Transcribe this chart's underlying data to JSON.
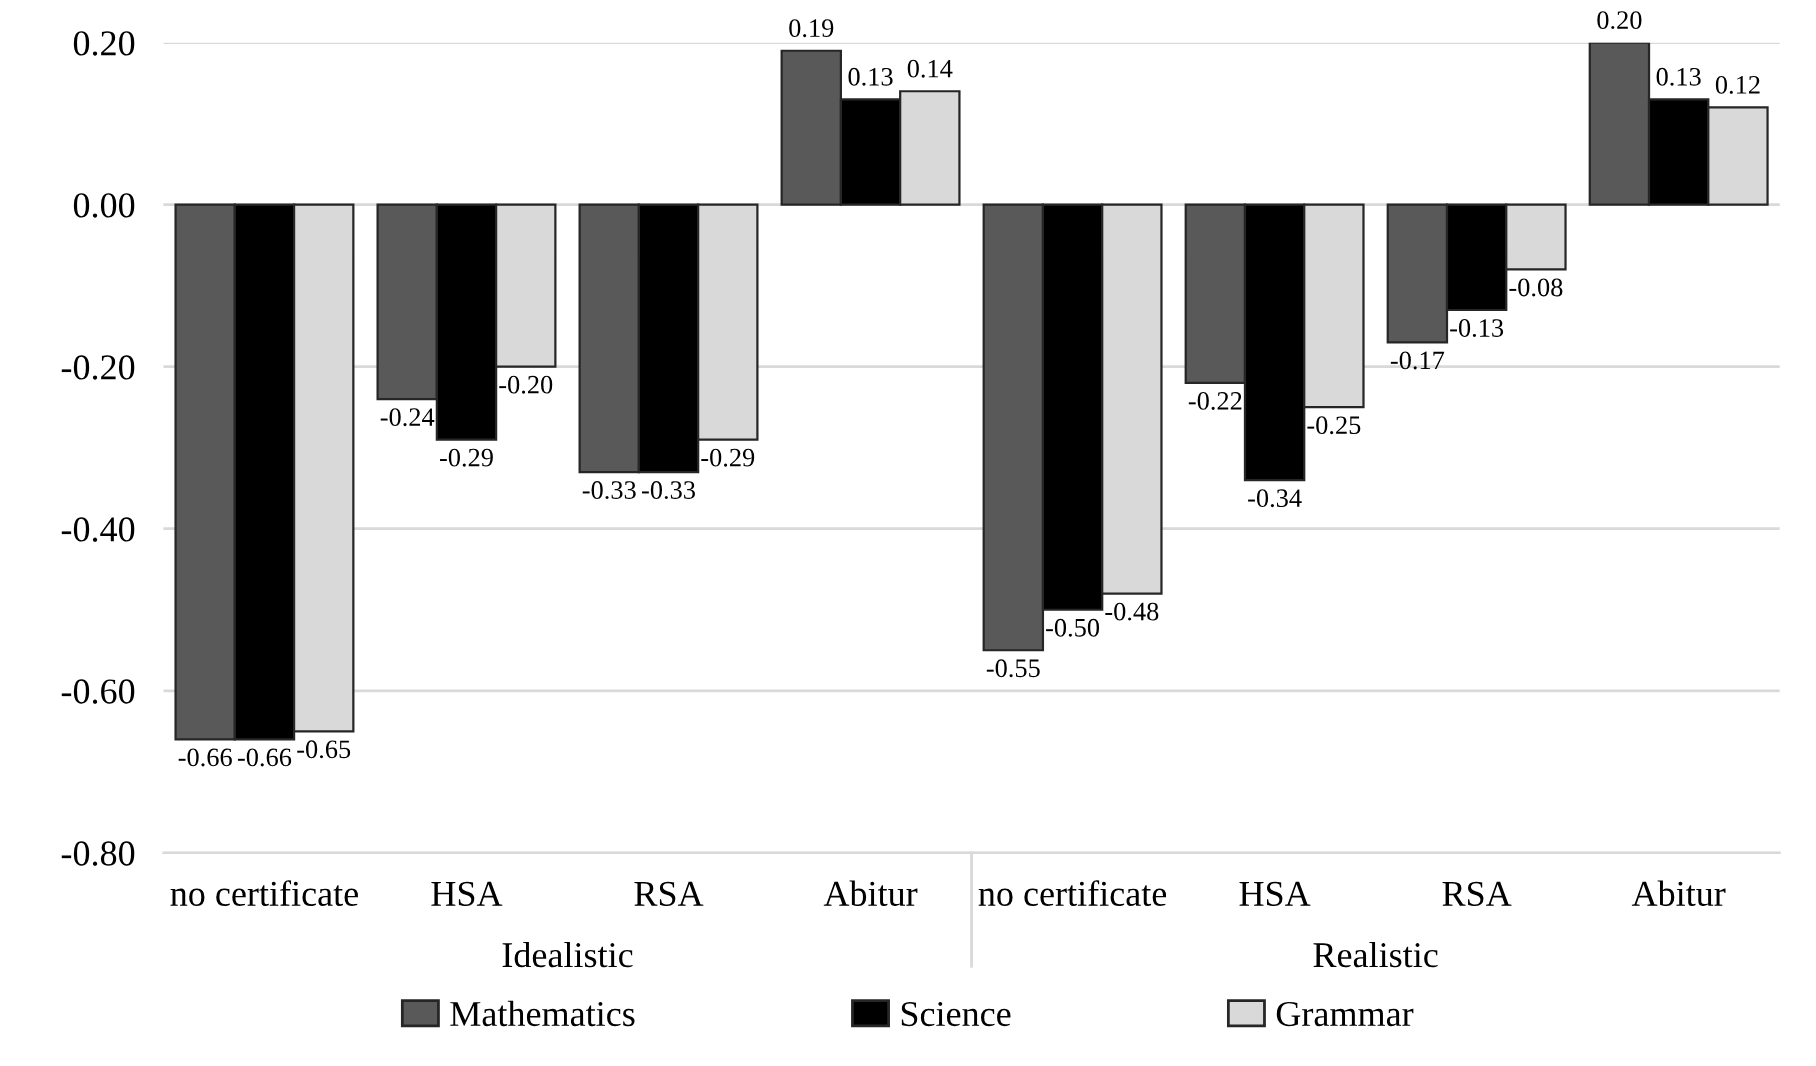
{
  "chart_data": {
    "type": "bar",
    "categories": [
      "no certificate",
      "HSA",
      "RSA",
      "Abitur",
      "no certificate",
      "HSA",
      "RSA",
      "Abitur"
    ],
    "annotations": [
      "Idealistic",
      "Realistic"
    ],
    "series": [
      {
        "name": "Mathematics",
        "color": "#595959",
        "values": [
          -0.66,
          -0.24,
          -0.33,
          0.19,
          -0.55,
          -0.22,
          -0.17,
          0.2
        ],
        "value_labels": [
          "-0.66",
          "-0.24",
          "-0.33",
          "0.19",
          "-0.55",
          "-0.22",
          "-0.17",
          "0.20"
        ]
      },
      {
        "name": "Science",
        "color": "#000000",
        "values": [
          -0.66,
          -0.29,
          -0.33,
          0.13,
          -0.5,
          -0.34,
          -0.13,
          0.13
        ],
        "value_labels": [
          "-0.66",
          "-0.29",
          "-0.33",
          "0.13",
          "-0.50",
          "-0.34",
          "-0.13",
          "0.13"
        ]
      },
      {
        "name": "Grammar",
        "color": "#d9d9d9",
        "values": [
          -0.65,
          -0.2,
          -0.29,
          0.14,
          -0.48,
          -0.25,
          -0.08,
          0.12
        ],
        "value_labels": [
          "-0.65",
          "-0.20",
          "-0.29",
          "0.14",
          "-0.48",
          "-0.25",
          "-0.08",
          "0.12"
        ]
      }
    ],
    "ylim": [
      -0.8,
      0.2
    ],
    "yticks": [
      {
        "value": -0.8,
        "label": "-0.80"
      },
      {
        "value": -0.6,
        "label": "-0.60"
      },
      {
        "value": -0.4,
        "label": "-0.40"
      },
      {
        "value": -0.2,
        "label": "-0.20"
      },
      {
        "value": 0,
        "label": "0.00"
      },
      {
        "value": 0.2,
        "label": "0.20"
      }
    ],
    "grid": "y",
    "legend": "bottom"
  }
}
